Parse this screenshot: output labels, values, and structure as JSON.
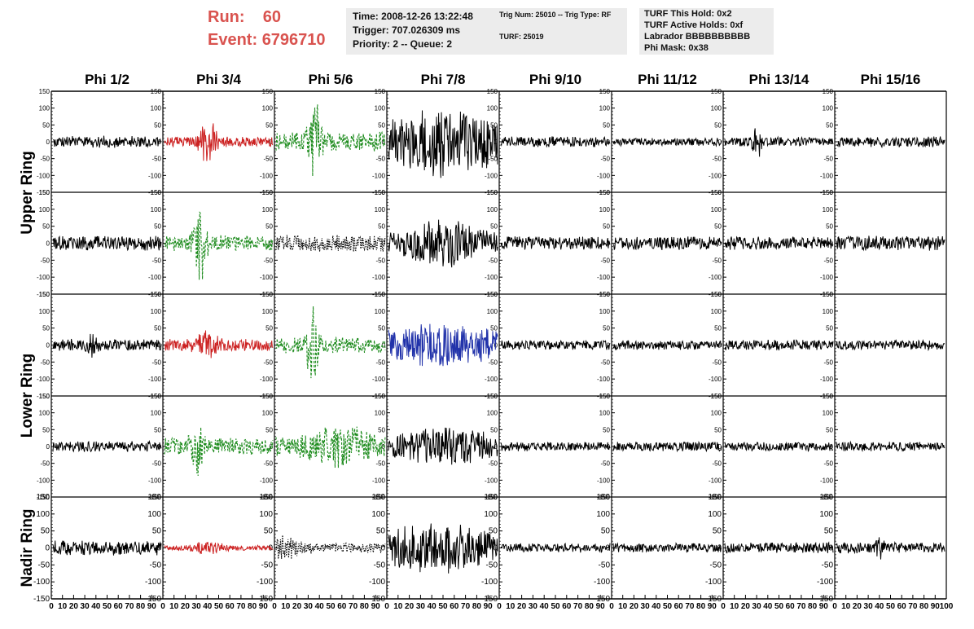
{
  "header": {
    "run_label": "Run:",
    "run_value": "60",
    "event_label": "Event:",
    "event_value": "6796710",
    "box1": [
      "Time: 2008-12-26 13:22:48",
      "Trigger: 707.026309 ms",
      "Priority: 2 -- Queue: 2"
    ],
    "box2": [
      "Trig Num: 25010 -- Trig Type: RF",
      "TURF: 25019"
    ],
    "box3": [
      "TURF This Hold: 0x2",
      "TURF Active Holds: 0xf",
      "Labrador BBBBBBBBBB",
      "Phi Mask: 0x38"
    ],
    "accent_color": "#d9534f",
    "box_color": "#ececec"
  },
  "chart_data": {
    "type": "line",
    "columns": [
      "Phi 1/2",
      "Phi 3/4",
      "Phi 5/6",
      "Phi 7/8",
      "Phi 9/10",
      "Phi 11/12",
      "Phi 13/14",
      "Phi 15/16"
    ],
    "ring_labels": [
      "Upper Ring",
      "Lower Ring",
      "Nadir Ring"
    ],
    "rows_per_ring": [
      2,
      2,
      1
    ],
    "ylim": [
      -150,
      150
    ],
    "yticks": [
      -150,
      -100,
      -50,
      0,
      50,
      100,
      150
    ],
    "ytick_labels": [
      "-150",
      "-100",
      "-50",
      "0",
      "50",
      "100",
      "150"
    ],
    "xlim": [
      0,
      100
    ],
    "xtick_labels": [
      "0",
      "10",
      "20",
      "30",
      "40",
      "50",
      "60",
      "70",
      "80",
      "90",
      "100"
    ],
    "samples_per_trace": 100,
    "series_colors": {
      "black": "#000000",
      "red": "#cc2222",
      "green": "#1e8c1e",
      "blue": "#2233aa"
    },
    "grid": false,
    "legend": "none",
    "traces": [
      {
        "row": 0,
        "col": 0,
        "color": "black",
        "style": "solid",
        "amplitude": 18,
        "peak": 35,
        "pulse_at": 45,
        "pulse_width": 0
      },
      {
        "row": 0,
        "col": 1,
        "color": "red",
        "style": "solid",
        "amplitude": 15,
        "peak": 75,
        "pulse_at": 40,
        "pulse_width": 8
      },
      {
        "row": 0,
        "col": 2,
        "color": "green",
        "style": "dashed",
        "amplitude": 30,
        "peak": 160,
        "pulse_at": 35,
        "pulse_width": 5
      },
      {
        "row": 0,
        "col": 3,
        "color": "black",
        "style": "solid",
        "amplitude": 60,
        "peak": 110,
        "pulse_at": 50,
        "pulse_width": 40
      },
      {
        "row": 0,
        "col": 4,
        "color": "black",
        "style": "solid",
        "amplitude": 16,
        "peak": 35,
        "pulse_at": 0,
        "pulse_width": 0
      },
      {
        "row": 0,
        "col": 5,
        "color": "black",
        "style": "solid",
        "amplitude": 12,
        "peak": 25,
        "pulse_at": 0,
        "pulse_width": 0
      },
      {
        "row": 0,
        "col": 6,
        "color": "black",
        "style": "solid",
        "amplitude": 14,
        "peak": 55,
        "pulse_at": 30,
        "pulse_width": 4
      },
      {
        "row": 0,
        "col": 7,
        "color": "black",
        "style": "solid",
        "amplitude": 16,
        "peak": 35,
        "pulse_at": 0,
        "pulse_width": 0
      },
      {
        "row": 1,
        "col": 0,
        "color": "black",
        "style": "solid",
        "amplitude": 22,
        "peak": 45,
        "pulse_at": 0,
        "pulse_width": 0
      },
      {
        "row": 1,
        "col": 1,
        "color": "green",
        "style": "dashed",
        "amplitude": 25,
        "peak": 120,
        "pulse_at": 33,
        "pulse_width": 6
      },
      {
        "row": 1,
        "col": 2,
        "color": "black",
        "style": "dotted",
        "amplitude": 25,
        "peak": 50,
        "pulse_at": 0,
        "pulse_width": 0
      },
      {
        "row": 1,
        "col": 3,
        "color": "black",
        "style": "solid",
        "amplitude": 30,
        "peak": 75,
        "pulse_at": 50,
        "pulse_width": 30
      },
      {
        "row": 1,
        "col": 4,
        "color": "black",
        "style": "solid",
        "amplitude": 20,
        "peak": 40,
        "pulse_at": 0,
        "pulse_width": 0
      },
      {
        "row": 1,
        "col": 5,
        "color": "black",
        "style": "solid",
        "amplitude": 20,
        "peak": 40,
        "pulse_at": 0,
        "pulse_width": 0
      },
      {
        "row": 1,
        "col": 6,
        "color": "black",
        "style": "solid",
        "amplitude": 20,
        "peak": 45,
        "pulse_at": 0,
        "pulse_width": 0
      },
      {
        "row": 1,
        "col": 7,
        "color": "black",
        "style": "solid",
        "amplitude": 22,
        "peak": 45,
        "pulse_at": 0,
        "pulse_width": 0
      },
      {
        "row": 2,
        "col": 0,
        "color": "black",
        "style": "solid",
        "amplitude": 18,
        "peak": 45,
        "pulse_at": 35,
        "pulse_width": 4
      },
      {
        "row": 2,
        "col": 1,
        "color": "red",
        "style": "solid",
        "amplitude": 18,
        "peak": 45,
        "pulse_at": 40,
        "pulse_width": 10
      },
      {
        "row": 2,
        "col": 2,
        "color": "green",
        "style": "dashed",
        "amplitude": 25,
        "peak": 130,
        "pulse_at": 33,
        "pulse_width": 5
      },
      {
        "row": 2,
        "col": 3,
        "color": "blue",
        "style": "solid",
        "amplitude": 45,
        "peak": 65,
        "pulse_at": 50,
        "pulse_width": 45
      },
      {
        "row": 2,
        "col": 4,
        "color": "black",
        "style": "solid",
        "amplitude": 14,
        "peak": 30,
        "pulse_at": 0,
        "pulse_width": 0
      },
      {
        "row": 2,
        "col": 5,
        "color": "black",
        "style": "solid",
        "amplitude": 14,
        "peak": 30,
        "pulse_at": 0,
        "pulse_width": 0
      },
      {
        "row": 2,
        "col": 6,
        "color": "black",
        "style": "solid",
        "amplitude": 16,
        "peak": 35,
        "pulse_at": 0,
        "pulse_width": 0
      },
      {
        "row": 2,
        "col": 7,
        "color": "black",
        "style": "solid",
        "amplitude": 14,
        "peak": 30,
        "pulse_at": 0,
        "pulse_width": 0
      },
      {
        "row": 3,
        "col": 0,
        "color": "black",
        "style": "solid",
        "amplitude": 16,
        "peak": 35,
        "pulse_at": 0,
        "pulse_width": 0
      },
      {
        "row": 3,
        "col": 1,
        "color": "green",
        "style": "dashed",
        "amplitude": 25,
        "peak": 100,
        "pulse_at": 30,
        "pulse_width": 6
      },
      {
        "row": 3,
        "col": 2,
        "color": "green",
        "style": "dashed",
        "amplitude": 30,
        "peak": 70,
        "pulse_at": 60,
        "pulse_width": 25
      },
      {
        "row": 3,
        "col": 3,
        "color": "black",
        "style": "solid",
        "amplitude": 35,
        "peak": 60,
        "pulse_at": 55,
        "pulse_width": 35
      },
      {
        "row": 3,
        "col": 4,
        "color": "black",
        "style": "solid",
        "amplitude": 14,
        "peak": 30,
        "pulse_at": 0,
        "pulse_width": 0
      },
      {
        "row": 3,
        "col": 5,
        "color": "black",
        "style": "solid",
        "amplitude": 14,
        "peak": 30,
        "pulse_at": 0,
        "pulse_width": 0
      },
      {
        "row": 3,
        "col": 6,
        "color": "black",
        "style": "solid",
        "amplitude": 14,
        "peak": 30,
        "pulse_at": 0,
        "pulse_width": 0
      },
      {
        "row": 3,
        "col": 7,
        "color": "black",
        "style": "solid",
        "amplitude": 14,
        "peak": 30,
        "pulse_at": 0,
        "pulse_width": 0
      },
      {
        "row": 4,
        "col": 0,
        "color": "black",
        "style": "solid",
        "amplitude": 22,
        "peak": 45,
        "pulse_at": 0,
        "pulse_width": 0
      },
      {
        "row": 4,
        "col": 1,
        "color": "red",
        "style": "solid",
        "amplitude": 8,
        "peak": 20,
        "pulse_at": 40,
        "pulse_width": 15
      },
      {
        "row": 4,
        "col": 2,
        "color": "black",
        "style": "dotted",
        "amplitude": 15,
        "peak": 40,
        "pulse_at": 10,
        "pulse_width": 15
      },
      {
        "row": 4,
        "col": 3,
        "color": "black",
        "style": "solid",
        "amplitude": 45,
        "peak": 80,
        "pulse_at": 45,
        "pulse_width": 40
      },
      {
        "row": 4,
        "col": 4,
        "color": "black",
        "style": "solid",
        "amplitude": 14,
        "peak": 30,
        "pulse_at": 0,
        "pulse_width": 0
      },
      {
        "row": 4,
        "col": 5,
        "color": "black",
        "style": "solid",
        "amplitude": 14,
        "peak": 30,
        "pulse_at": 0,
        "pulse_width": 0
      },
      {
        "row": 4,
        "col": 6,
        "color": "black",
        "style": "solid",
        "amplitude": 16,
        "peak": 35,
        "pulse_at": 0,
        "pulse_width": 0
      },
      {
        "row": 4,
        "col": 7,
        "color": "black",
        "style": "solid",
        "amplitude": 16,
        "peak": 40,
        "pulse_at": 40,
        "pulse_width": 4
      }
    ]
  }
}
